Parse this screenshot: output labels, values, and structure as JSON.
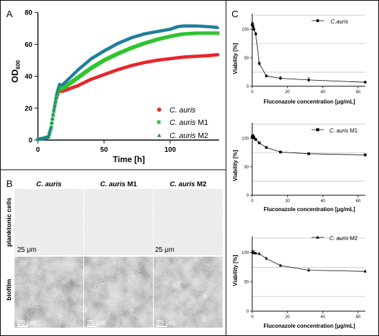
{
  "panels": {
    "a": "A",
    "b": "B",
    "c": "C"
  },
  "growth": {
    "ylabel_main": "OD",
    "ylabel_sub": "600",
    "xlabel": "Time [h]",
    "xticks": [
      "0",
      "50",
      "100"
    ],
    "yticks": [
      "0",
      "20",
      "40",
      "60",
      "80"
    ],
    "legend": [
      {
        "prefix": "C. auris",
        "suffix": ""
      },
      {
        "prefix": "C. auris",
        "suffix": " M1"
      },
      {
        "prefix": "C. auris",
        "suffix": " M2"
      }
    ]
  },
  "micro": {
    "headers": [
      {
        "prefix": "C.  auris",
        "suffix": ""
      },
      {
        "prefix": "C.  auris",
        "suffix": " M1"
      },
      {
        "prefix": "C.  auris",
        "suffix": " M2"
      }
    ],
    "rows": [
      "planktonic cells",
      "biofilm"
    ],
    "scale": "25 μm"
  },
  "viability": {
    "ylabel": "Viability [%]",
    "xlabel": "Fluconazole concentration [μg/mL]",
    "xticks": [
      "0",
      "20",
      "40",
      "60"
    ],
    "yticks": [
      "0",
      "50",
      "100"
    ],
    "legends": [
      {
        "prefix": "C.auris",
        "suffix": ""
      },
      {
        "prefix": "C. auris",
        "suffix": " M1"
      },
      {
        "prefix": "C. auris",
        "suffix": " M2"
      }
    ]
  },
  "colors": {
    "auris": "#e8262b",
    "m1": "#2fc42f",
    "m2": "#1f7f9a",
    "black": "#000000"
  },
  "chart_data": [
    {
      "type": "scatter",
      "panel": "A",
      "xlabel": "Time [h]",
      "ylabel": "OD600",
      "xlim": [
        0,
        137
      ],
      "ylim": [
        0,
        80
      ],
      "grid": false,
      "legend_position": "bottom-right",
      "series": [
        {
          "name": "C. auris",
          "color": "#e8262b",
          "marker": "circle",
          "x": [
            0,
            4,
            8,
            10,
            12,
            14,
            16,
            18,
            20,
            25,
            30,
            40,
            50,
            60,
            70,
            80,
            90,
            100,
            110,
            120,
            130,
            136
          ],
          "y": [
            0.5,
            1,
            2,
            8,
            18,
            26,
            31,
            30.5,
            31,
            32.5,
            34,
            38,
            41,
            44,
            46.5,
            48.5,
            50,
            51,
            52,
            52.5,
            53,
            53.5
          ]
        },
        {
          "name": "C. auris M1",
          "color": "#2fc42f",
          "marker": "square",
          "x": [
            0,
            4,
            8,
            10,
            12,
            14,
            16,
            18,
            20,
            25,
            30,
            40,
            50,
            60,
            70,
            80,
            90,
            100,
            110,
            120,
            130,
            136
          ],
          "y": [
            0.5,
            1,
            2,
            8,
            18,
            27,
            33,
            32,
            33,
            36,
            39,
            45,
            50,
            54,
            57.5,
            60.5,
            63,
            65,
            66.5,
            67,
            67,
            67
          ]
        },
        {
          "name": "C. auris M2",
          "color": "#1f7f9a",
          "marker": "triangle",
          "x": [
            0,
            4,
            8,
            10,
            12,
            14,
            16,
            18,
            20,
            25,
            30,
            40,
            50,
            60,
            70,
            80,
            90,
            100,
            105,
            110,
            120,
            130,
            136
          ],
          "y": [
            0.5,
            1,
            2,
            8,
            19,
            29,
            35,
            34.5,
            36,
            40,
            44,
            51,
            56,
            60.5,
            64,
            66.5,
            68,
            69.5,
            71,
            71.5,
            71.5,
            71,
            70.5
          ]
        }
      ]
    },
    {
      "type": "line",
      "panel": "C",
      "xlabel": "Fluconazole concentration [μg/mL]",
      "ylabel": "Viability [%]",
      "xlim": [
        0,
        64
      ],
      "ylim": [
        0,
        125
      ],
      "legend_position": "top-right",
      "series": [
        {
          "name": "C.auris",
          "marker": "circle",
          "x": [
            0,
            0.125,
            0.25,
            0.5,
            1,
            2,
            4,
            8,
            16,
            32,
            64
          ],
          "y": [
            108,
            110,
            107,
            105,
            100,
            92,
            40,
            18,
            14,
            11,
            7
          ],
          "err": [
            3,
            3,
            3,
            3,
            3,
            3,
            3,
            2,
            3,
            4,
            2
          ]
        }
      ]
    },
    {
      "type": "line",
      "panel": "C",
      "xlabel": "Fluconazole concentration [μg/mL]",
      "ylabel": "Viability [%]",
      "xlim": [
        0,
        64
      ],
      "ylim": [
        0,
        125
      ],
      "legend_position": "top-right",
      "series": [
        {
          "name": "C. auris M1",
          "marker": "square",
          "x": [
            0,
            0.5,
            1,
            2,
            4,
            8,
            16,
            32,
            64
          ],
          "y": [
            103,
            104,
            101,
            98,
            92,
            84,
            76,
            73,
            71
          ],
          "err": [
            3,
            3,
            3,
            2,
            2,
            2,
            2,
            2,
            2
          ]
        }
      ]
    },
    {
      "type": "line",
      "panel": "C",
      "xlabel": "Fluconazole concentration [μg/mL]",
      "ylabel": "Viability [%]",
      "xlim": [
        0,
        64
      ],
      "ylim": [
        0,
        125
      ],
      "legend_position": "top-right",
      "series": [
        {
          "name": "C. auris M2",
          "marker": "triangle",
          "x": [
            0,
            0.5,
            1,
            2,
            4,
            8,
            16,
            32,
            64
          ],
          "y": [
            101,
            100,
            100,
            99,
            98,
            90,
            78,
            70,
            68
          ],
          "err": [
            3,
            3,
            3,
            2,
            2,
            2,
            2,
            3,
            2
          ]
        }
      ]
    }
  ]
}
